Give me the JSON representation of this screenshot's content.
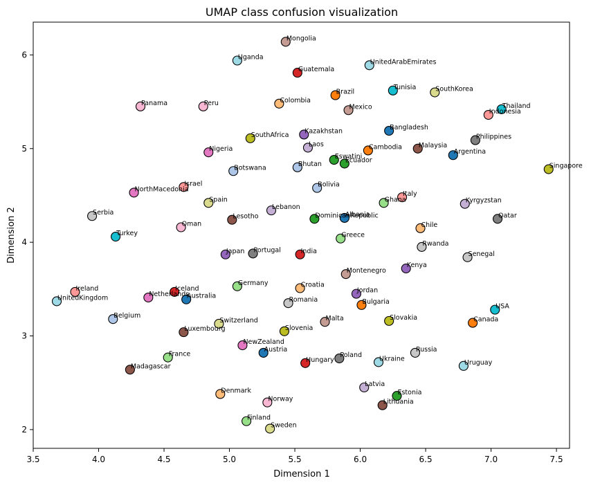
{
  "chart_data": {
    "type": "scatter",
    "title": "UMAP class confusion visualization",
    "xlabel": "Dimension 1",
    "ylabel": "Dimension 2",
    "xlim": [
      3.5,
      7.6
    ],
    "ylim": [
      1.8,
      6.35
    ],
    "xticks": [
      "3.5",
      "4.0",
      "4.5",
      "5.0",
      "5.5",
      "6.0",
      "6.5",
      "7.0",
      "7.5"
    ],
    "yticks": [
      "2",
      "3",
      "4",
      "5",
      "6"
    ],
    "grid": false,
    "legend": "none",
    "points": [
      {
        "label": "Mongolia",
        "x": 5.43,
        "y": 6.14,
        "color": "#c49c94"
      },
      {
        "label": "Uganda",
        "x": 5.06,
        "y": 5.94,
        "color": "#9edae5"
      },
      {
        "label": "UnitedArabEmirates",
        "x": 6.07,
        "y": 5.89,
        "color": "#9edae5"
      },
      {
        "label": "Guatemala",
        "x": 5.52,
        "y": 5.81,
        "color": "#d62728"
      },
      {
        "label": "Tunisia",
        "x": 6.25,
        "y": 5.62,
        "color": "#17becf"
      },
      {
        "label": "SouthKorea",
        "x": 6.57,
        "y": 5.6,
        "color": "#dbdb8d"
      },
      {
        "label": "Brazil",
        "x": 5.81,
        "y": 5.57,
        "color": "#ff7f0e"
      },
      {
        "label": "Colombia",
        "x": 5.38,
        "y": 5.48,
        "color": "#ffbb78"
      },
      {
        "label": "Panama",
        "x": 4.32,
        "y": 5.45,
        "color": "#f7b6d2"
      },
      {
        "label": "Peru",
        "x": 4.8,
        "y": 5.45,
        "color": "#f7b6d2"
      },
      {
        "label": "Mexico",
        "x": 5.91,
        "y": 5.41,
        "color": "#c49c94"
      },
      {
        "label": "Thailand",
        "x": 7.08,
        "y": 5.42,
        "color": "#17becf"
      },
      {
        "label": "Indonesia",
        "x": 6.98,
        "y": 5.36,
        "color": "#ff9896"
      },
      {
        "label": "Bangladesh",
        "x": 6.22,
        "y": 5.19,
        "color": "#1f77b4"
      },
      {
        "label": "Kazakhstan",
        "x": 5.57,
        "y": 5.15,
        "color": "#9467bd"
      },
      {
        "label": "SouthAfrica",
        "x": 5.16,
        "y": 5.11,
        "color": "#bcbd22"
      },
      {
        "label": "Philippines",
        "x": 6.88,
        "y": 5.09,
        "color": "#7f7f7f"
      },
      {
        "label": "Laos",
        "x": 5.6,
        "y": 5.01,
        "color": "#c5b0d5"
      },
      {
        "label": "Malaysia",
        "x": 6.44,
        "y": 5.0,
        "color": "#8c564b"
      },
      {
        "label": "Cambodia",
        "x": 6.06,
        "y": 4.98,
        "color": "#ff7f0e"
      },
      {
        "label": "Nigeria",
        "x": 4.84,
        "y": 4.96,
        "color": "#e377c2"
      },
      {
        "label": "Argentina",
        "x": 6.71,
        "y": 4.93,
        "color": "#1f77b4"
      },
      {
        "label": "Eswatini",
        "x": 5.8,
        "y": 4.88,
        "color": "#2ca02c"
      },
      {
        "label": "Ecuador",
        "x": 5.88,
        "y": 4.84,
        "color": "#2ca02c"
      },
      {
        "label": "Bhutan",
        "x": 5.52,
        "y": 4.8,
        "color": "#aec7e8"
      },
      {
        "label": "Singapore",
        "x": 7.44,
        "y": 4.78,
        "color": "#bcbd22"
      },
      {
        "label": "Botswana",
        "x": 5.03,
        "y": 4.76,
        "color": "#aec7e8"
      },
      {
        "label": "Bolivia",
        "x": 5.67,
        "y": 4.58,
        "color": "#aec7e8"
      },
      {
        "label": "Israel",
        "x": 4.65,
        "y": 4.59,
        "color": "#ff9896"
      },
      {
        "label": "NorthMacedonia",
        "x": 4.27,
        "y": 4.53,
        "color": "#e377c2"
      },
      {
        "label": "Italy",
        "x": 6.32,
        "y": 4.48,
        "color": "#ff9896"
      },
      {
        "label": "Spain",
        "x": 4.84,
        "y": 4.42,
        "color": "#dbdb8d"
      },
      {
        "label": "Ghana",
        "x": 6.18,
        "y": 4.42,
        "color": "#98df8a"
      },
      {
        "label": "Kyrgyzstan",
        "x": 6.8,
        "y": 4.41,
        "color": "#c5b0d5"
      },
      {
        "label": "Lebanon",
        "x": 5.32,
        "y": 4.34,
        "color": "#c5b0d5"
      },
      {
        "label": "Serbia",
        "x": 3.95,
        "y": 4.28,
        "color": "#c7c7c7"
      },
      {
        "label": "Albania",
        "x": 5.88,
        "y": 4.26,
        "color": "#1f77b4"
      },
      {
        "label": "DominicanRepublic",
        "x": 5.65,
        "y": 4.25,
        "color": "#2ca02c"
      },
      {
        "label": "Qatar",
        "x": 7.05,
        "y": 4.25,
        "color": "#7f7f7f"
      },
      {
        "label": "Lesotho",
        "x": 5.02,
        "y": 4.24,
        "color": "#8c564b"
      },
      {
        "label": "Oman",
        "x": 4.63,
        "y": 4.16,
        "color": "#f7b6d2"
      },
      {
        "label": "Chile",
        "x": 6.46,
        "y": 4.15,
        "color": "#ffbb78"
      },
      {
        "label": "Turkey",
        "x": 4.13,
        "y": 4.06,
        "color": "#17becf"
      },
      {
        "label": "Greece",
        "x": 5.85,
        "y": 4.04,
        "color": "#98df8a"
      },
      {
        "label": "Rwanda",
        "x": 6.47,
        "y": 3.95,
        "color": "#c7c7c7"
      },
      {
        "label": "Japan",
        "x": 4.97,
        "y": 3.87,
        "color": "#9467bd"
      },
      {
        "label": "Portugal",
        "x": 5.18,
        "y": 3.88,
        "color": "#7f7f7f"
      },
      {
        "label": "India",
        "x": 5.54,
        "y": 3.87,
        "color": "#d62728"
      },
      {
        "label": "Senegal",
        "x": 6.82,
        "y": 3.84,
        "color": "#c7c7c7"
      },
      {
        "label": "Kenya",
        "x": 6.35,
        "y": 3.72,
        "color": "#9467bd"
      },
      {
        "label": "Montenegro",
        "x": 5.89,
        "y": 3.66,
        "color": "#c49c94"
      },
      {
        "label": "Germany",
        "x": 5.06,
        "y": 3.53,
        "color": "#98df8a"
      },
      {
        "label": "Croatia",
        "x": 5.54,
        "y": 3.51,
        "color": "#ffbb78"
      },
      {
        "label": "Ireland",
        "x": 3.82,
        "y": 3.47,
        "color": "#ff9896"
      },
      {
        "label": "Iceland",
        "x": 4.58,
        "y": 3.47,
        "color": "#d62728"
      },
      {
        "label": "Jordan",
        "x": 5.97,
        "y": 3.45,
        "color": "#9467bd"
      },
      {
        "label": "Netherlands",
        "x": 4.38,
        "y": 3.41,
        "color": "#e377c2"
      },
      {
        "label": "Australia",
        "x": 4.67,
        "y": 3.39,
        "color": "#1f77b4"
      },
      {
        "label": "UnitedKingdom",
        "x": 3.68,
        "y": 3.37,
        "color": "#9edae5"
      },
      {
        "label": "Romania",
        "x": 5.45,
        "y": 3.35,
        "color": "#c7c7c7"
      },
      {
        "label": "Bulgaria",
        "x": 6.01,
        "y": 3.33,
        "color": "#ff7f0e"
      },
      {
        "label": "USA",
        "x": 7.03,
        "y": 3.28,
        "color": "#17becf"
      },
      {
        "label": "Belgium",
        "x": 4.11,
        "y": 3.18,
        "color": "#aec7e8"
      },
      {
        "label": "Slovakia",
        "x": 6.22,
        "y": 3.16,
        "color": "#bcbd22"
      },
      {
        "label": "Malta",
        "x": 5.73,
        "y": 3.15,
        "color": "#c49c94"
      },
      {
        "label": "Canada",
        "x": 6.86,
        "y": 3.14,
        "color": "#ff7f0e"
      },
      {
        "label": "Switzerland",
        "x": 4.92,
        "y": 3.13,
        "color": "#dbdb8d"
      },
      {
        "label": "Slovenia",
        "x": 5.42,
        "y": 3.05,
        "color": "#bcbd22"
      },
      {
        "label": "Luxembourg",
        "x": 4.65,
        "y": 3.04,
        "color": "#8c564b"
      },
      {
        "label": "NewZealand",
        "x": 5.1,
        "y": 2.9,
        "color": "#e377c2"
      },
      {
        "label": "Russia",
        "x": 6.42,
        "y": 2.82,
        "color": "#c7c7c7"
      },
      {
        "label": "Austria",
        "x": 5.26,
        "y": 2.82,
        "color": "#1f77b4"
      },
      {
        "label": "France",
        "x": 4.53,
        "y": 2.77,
        "color": "#98df8a"
      },
      {
        "label": "Poland",
        "x": 5.84,
        "y": 2.76,
        "color": "#7f7f7f"
      },
      {
        "label": "Hungary",
        "x": 5.58,
        "y": 2.71,
        "color": "#d62728"
      },
      {
        "label": "Ukraine",
        "x": 6.14,
        "y": 2.72,
        "color": "#9edae5"
      },
      {
        "label": "Uruguay",
        "x": 6.79,
        "y": 2.68,
        "color": "#9edae5"
      },
      {
        "label": "Madagascar",
        "x": 4.24,
        "y": 2.64,
        "color": "#8c564b"
      },
      {
        "label": "Latvia",
        "x": 6.03,
        "y": 2.45,
        "color": "#c5b0d5"
      },
      {
        "label": "Denmark",
        "x": 4.93,
        "y": 2.38,
        "color": "#ffbb78"
      },
      {
        "label": "Estonia",
        "x": 6.28,
        "y": 2.36,
        "color": "#2ca02c"
      },
      {
        "label": "Norway",
        "x": 5.29,
        "y": 2.29,
        "color": "#f7b6d2"
      },
      {
        "label": "Lithuania",
        "x": 6.17,
        "y": 2.26,
        "color": "#8c564b"
      },
      {
        "label": "Finland",
        "x": 5.13,
        "y": 2.09,
        "color": "#98df8a"
      },
      {
        "label": "Sweden",
        "x": 5.31,
        "y": 2.01,
        "color": "#dbdb8d"
      }
    ]
  }
}
